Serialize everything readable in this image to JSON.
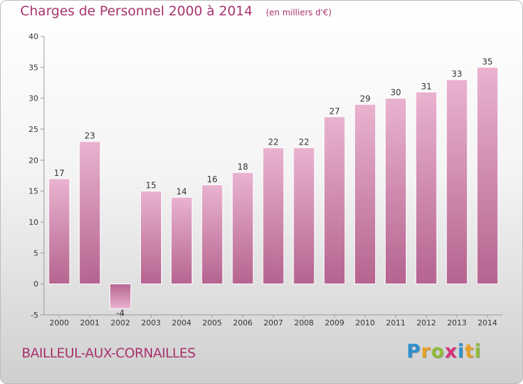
{
  "header": {
    "title": "Charges de Personnel 2000 à 2014",
    "subtitle": "(en milliers d'€)"
  },
  "footer": {
    "commune": "BAILLEUL-AUX-CORNAILLES",
    "logo": {
      "letters": [
        "P",
        "r",
        "o",
        "x",
        "i",
        "t",
        "i"
      ],
      "colors": [
        "#2c8fcd",
        "#e6a126",
        "#8fbb3a",
        "#d6317b",
        "#2c8fcd",
        "#e6a126",
        "#8fbb3a"
      ]
    }
  },
  "chart_data": {
    "type": "bar",
    "title": "Charges de Personnel 2000 à 2014",
    "subtitle": "(en milliers d'€)",
    "categories": [
      "2000",
      "2001",
      "2002",
      "2003",
      "2004",
      "2005",
      "2006",
      "2007",
      "2008",
      "2009",
      "2010",
      "2011",
      "2012",
      "2013",
      "2014"
    ],
    "values": [
      17,
      23,
      -4,
      15,
      14,
      16,
      18,
      22,
      22,
      27,
      29,
      30,
      31,
      33,
      35
    ],
    "data_labels": [
      "17",
      "23",
      "-4",
      "15",
      "14",
      "16",
      "18",
      "22",
      "22",
      "27",
      "29",
      "30",
      "31",
      "33",
      "35"
    ],
    "ylim": [
      -5,
      40
    ],
    "yticks": [
      -5,
      0,
      5,
      10,
      15,
      20,
      25,
      30,
      35,
      40
    ],
    "grid": false,
    "colors": {
      "bar": "#d98bb4",
      "bar_light": "#e9b3d0",
      "bar_dark": "#b5648f",
      "title": "#a8336e"
    }
  }
}
